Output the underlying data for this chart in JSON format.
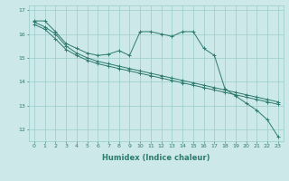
{
  "title": "",
  "xlabel": "Humidex (Indice chaleur)",
  "background_color": "#cce8e8",
  "grid_color": "#99cccc",
  "line_color": "#2d7a6e",
  "xlim": [
    -0.5,
    23.5
  ],
  "ylim": [
    11.5,
    17.2
  ],
  "xticks": [
    0,
    1,
    2,
    3,
    4,
    5,
    6,
    7,
    8,
    9,
    10,
    11,
    12,
    13,
    14,
    15,
    16,
    17,
    18,
    19,
    20,
    21,
    22,
    23
  ],
  "yticks": [
    12,
    13,
    14,
    15,
    16,
    17
  ],
  "series1_x": [
    0,
    1,
    2,
    3,
    4,
    5,
    6,
    7,
    8,
    9,
    10,
    11,
    12,
    13,
    14,
    15,
    16,
    17,
    18,
    19,
    20,
    21,
    22,
    23
  ],
  "series1_y": [
    16.55,
    16.55,
    16.1,
    15.6,
    15.4,
    15.2,
    15.1,
    15.15,
    15.3,
    15.1,
    16.1,
    16.1,
    16.0,
    15.9,
    16.1,
    16.1,
    15.4,
    15.1,
    13.7,
    13.4,
    13.1,
    12.8,
    12.4,
    11.7
  ],
  "series2_x": [
    0,
    1,
    2,
    3,
    4,
    5,
    6,
    7,
    8,
    9,
    10,
    11,
    12,
    13,
    14,
    15,
    16,
    17,
    18,
    19,
    20,
    21,
    22,
    23
  ],
  "series2_y": [
    16.5,
    16.3,
    16.0,
    15.5,
    15.2,
    15.0,
    14.85,
    14.75,
    14.65,
    14.55,
    14.45,
    14.35,
    14.25,
    14.15,
    14.05,
    13.95,
    13.85,
    13.75,
    13.65,
    13.55,
    13.45,
    13.35,
    13.25,
    13.15
  ],
  "series3_x": [
    0,
    1,
    2,
    3,
    4,
    5,
    6,
    7,
    8,
    9,
    10,
    11,
    12,
    13,
    14,
    15,
    16,
    17,
    18,
    19,
    20,
    21,
    22,
    23
  ],
  "series3_y": [
    16.4,
    16.2,
    15.8,
    15.35,
    15.1,
    14.9,
    14.75,
    14.65,
    14.55,
    14.45,
    14.35,
    14.25,
    14.15,
    14.05,
    13.95,
    13.85,
    13.75,
    13.65,
    13.55,
    13.45,
    13.35,
    13.25,
    13.15,
    13.05
  ]
}
